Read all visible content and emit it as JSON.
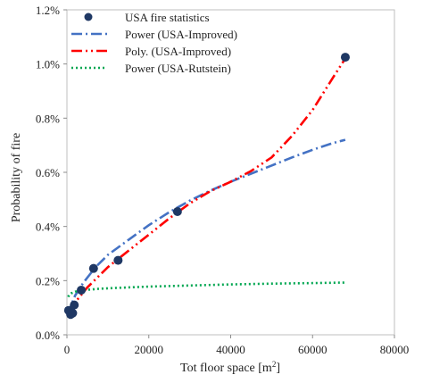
{
  "chart_data": {
    "type": "scatter",
    "title": "",
    "xlabel": "Tot floor space [m",
    "xlabel_sup": "2",
    "xlabel_end": "]",
    "ylabel": "Probability of fire",
    "xlim": [
      0,
      80000
    ],
    "ylim": [
      0,
      0.012
    ],
    "x_ticks": [
      0,
      20000,
      40000,
      60000,
      80000
    ],
    "x_tick_labels": [
      "0",
      "20000",
      "40000",
      "60000",
      "80000"
    ],
    "y_ticks": [
      0,
      0.002,
      0.004,
      0.006,
      0.008,
      0.01,
      0.012
    ],
    "y_tick_labels": [
      "0.0%",
      "0.2%",
      "0.4%",
      "0.6%",
      "0.8%",
      "1.0%",
      "1.2%"
    ],
    "grid": false,
    "legend_position": "top-left",
    "series": [
      {
        "name": "USA fire statistics",
        "kind": "markers",
        "color": "#1f3864",
        "points": [
          [
            400,
            0.0009
          ],
          [
            900,
            0.00075
          ],
          [
            1400,
            0.0008
          ],
          [
            1800,
            0.0011
          ],
          [
            3500,
            0.00165
          ],
          [
            6500,
            0.00245
          ],
          [
            12500,
            0.00275
          ],
          [
            27000,
            0.00455
          ],
          [
            68000,
            0.01025
          ]
        ]
      },
      {
        "name": "Power (USA-Improved)",
        "kind": "power",
        "line_style": "dash-dot",
        "color": "#4472c4",
        "x": [
          300,
          1000,
          2000,
          4000,
          7000,
          10000,
          15000,
          20000,
          25000,
          30000,
          35000,
          40000,
          45000,
          50000,
          55000,
          60000,
          65000,
          68000
        ],
        "values": [
          0.0007,
          0.00108,
          0.00145,
          0.00192,
          0.0025,
          0.00295,
          0.0035,
          0.00405,
          0.00453,
          0.00495,
          0.00532,
          0.00565,
          0.00595,
          0.00625,
          0.00655,
          0.00683,
          0.00708,
          0.0072
        ]
      },
      {
        "name": "Poly. (USA-Improved)",
        "kind": "polynomial",
        "line_style": "dash-dot-dot",
        "color": "#ff0000",
        "x": [
          300,
          2000,
          5000,
          10000,
          15000,
          20000,
          25000,
          30000,
          35000,
          40000,
          45000,
          50000,
          55000,
          60000,
          65000,
          68000
        ],
        "values": [
          0.0009,
          0.0012,
          0.00175,
          0.0025,
          0.0031,
          0.0037,
          0.0043,
          0.00485,
          0.0053,
          0.00565,
          0.00605,
          0.00655,
          0.00735,
          0.0083,
          0.0095,
          0.0102
        ]
      },
      {
        "name": "Power (USA-Rutstein)",
        "kind": "power",
        "line_style": "dotted",
        "color": "#00a650",
        "x": [
          300,
          600,
          1000,
          2000,
          3500,
          5000,
          8000,
          12000,
          20000,
          30000,
          40000,
          50000,
          60000,
          68000
        ],
        "values": [
          0.0014,
          0.00148,
          0.00153,
          0.00159,
          0.00163,
          0.00166,
          0.0017,
          0.00173,
          0.00178,
          0.00182,
          0.00186,
          0.00189,
          0.00191,
          0.00193
        ]
      }
    ]
  }
}
